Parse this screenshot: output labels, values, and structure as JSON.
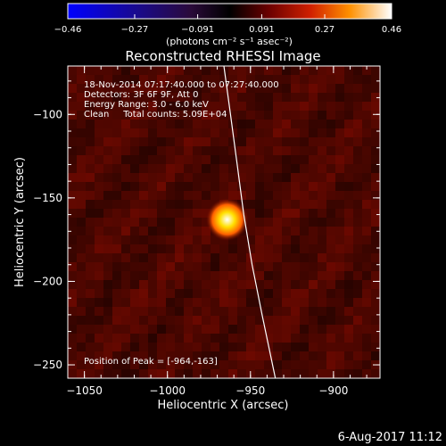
{
  "chart_data": {
    "type": "heatmap",
    "title": "Reconstructed RHESSI Image",
    "xlabel": "Heliocentric X (arcsec)",
    "ylabel": "Heliocentric Y (arcsec)",
    "xlim": [
      -1060,
      -872
    ],
    "ylim": [
      -258,
      -71
    ],
    "x_ticks": [
      -1050,
      -1000,
      -950,
      -900
    ],
    "x_tick_labels": [
      "−1050",
      "−1000",
      "−950",
      "−900"
    ],
    "y_ticks": [
      -100,
      -150,
      -200,
      -250
    ],
    "y_tick_labels": [
      "−100",
      "−150",
      "−200",
      "−250"
    ],
    "colorbar": {
      "min": -0.46,
      "max": 0.46,
      "ticks": [
        -0.46,
        -0.27,
        -0.091,
        0.091,
        0.27,
        0.46
      ],
      "tick_labels": [
        "−0.46",
        "−0.27",
        "−0.091",
        "0.091",
        "0.27",
        "0.46"
      ],
      "units_label": "(photons cm⁻² s⁻¹ asec⁻²)",
      "colormap": "blue-black-red-yellow-white"
    },
    "annotations": [
      "18-Nov-2014 07:17:40.000 to 07:27:40.000",
      "Detectors: 3F 6F 9F, Att 0",
      "Energy Range: 3.0 - 6.0 keV",
      "Clean     Total counts: 5.09E+04"
    ],
    "peak_label": "Position of Peak = [-964,-163]",
    "peak": {
      "x": -964,
      "y": -163,
      "value": 0.46
    },
    "limb_curve": [
      [
        -966,
        -71
      ],
      [
        -962,
        -100
      ],
      [
        -958,
        -130
      ],
      [
        -954,
        -160
      ],
      [
        -949,
        -190
      ],
      [
        -943,
        -220
      ],
      [
        -935,
        -258
      ]
    ],
    "colors": {
      "background": "#000000",
      "text": "#ffffff",
      "limb": "#ffffff",
      "axis": "#ffffff"
    }
  },
  "footer": {
    "date": "6-Aug-2017 11:12"
  }
}
